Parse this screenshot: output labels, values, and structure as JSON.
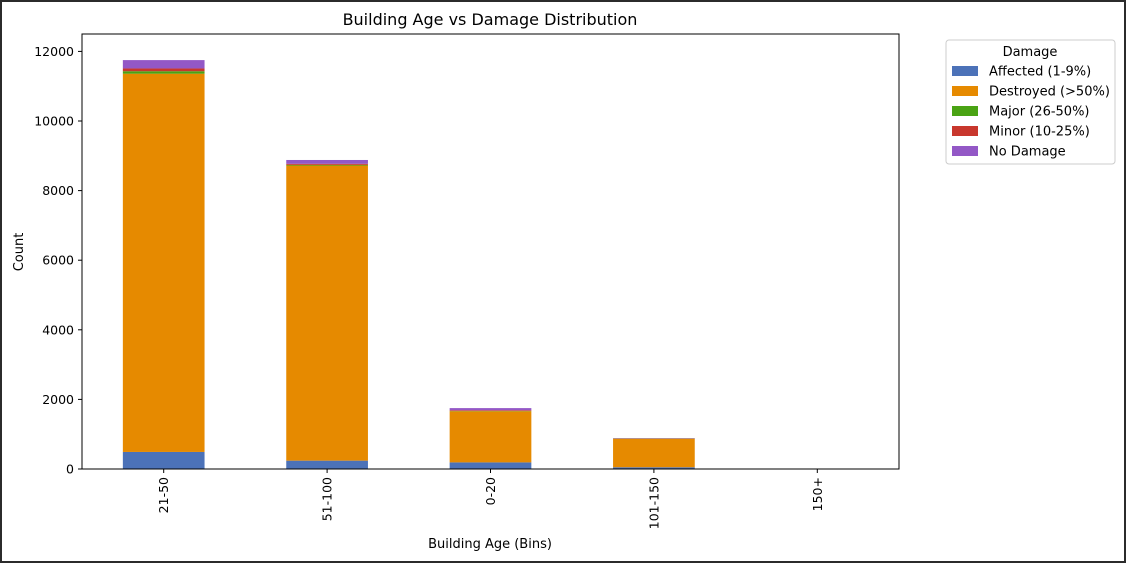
{
  "chart_data": {
    "type": "bar",
    "stacked": true,
    "title": "Building Age vs Damage Distribution",
    "xlabel": "Building Age (Bins)",
    "ylabel": "Count",
    "categories": [
      "21-50",
      "51-100",
      "0-20",
      "101-150",
      "150+"
    ],
    "ylim": [
      0,
      12500
    ],
    "yticks": [
      0,
      2000,
      4000,
      6000,
      8000,
      10000,
      12000
    ],
    "ytick_labels": [
      "0",
      "2000",
      "4000",
      "6000",
      "8000",
      "10000",
      "12000"
    ],
    "grid": false,
    "legend": {
      "title": "Damage",
      "placement": "upper-right outside"
    },
    "series": [
      {
        "name": "Affected (1-9%)",
        "color": "#4c72b8",
        "values": [
          490,
          240,
          190,
          50,
          0
        ]
      },
      {
        "name": "Destroyed (>50%)",
        "color": "#e68a00",
        "values": [
          10870,
          8480,
          1470,
          820,
          0
        ]
      },
      {
        "name": "Major (26-50%)",
        "color": "#4aa314",
        "values": [
          70,
          20,
          10,
          5,
          0
        ]
      },
      {
        "name": "Minor (10-25%)",
        "color": "#c8372d",
        "values": [
          80,
          30,
          20,
          5,
          0
        ]
      },
      {
        "name": "No Damage",
        "color": "#9358c6",
        "values": [
          240,
          110,
          60,
          10,
          0
        ]
      }
    ]
  }
}
